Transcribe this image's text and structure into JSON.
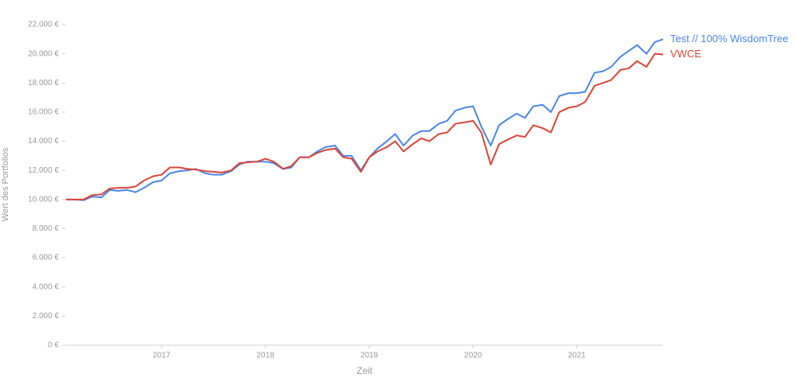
{
  "chart_data": {
    "type": "line",
    "x_label": "Zeit",
    "y_label": "Wert des Portfolios",
    "x": [
      2016.08,
      2016.17,
      2016.25,
      2016.33,
      2016.42,
      2016.5,
      2016.58,
      2016.67,
      2016.75,
      2016.83,
      2016.92,
      2017.0,
      2017.08,
      2017.17,
      2017.25,
      2017.33,
      2017.42,
      2017.5,
      2017.58,
      2017.67,
      2017.75,
      2017.83,
      2017.92,
      2018.0,
      2018.08,
      2018.17,
      2018.25,
      2018.33,
      2018.42,
      2018.5,
      2018.58,
      2018.67,
      2018.75,
      2018.83,
      2018.92,
      2019.0,
      2019.08,
      2019.17,
      2019.25,
      2019.33,
      2019.42,
      2019.5,
      2019.58,
      2019.67,
      2019.75,
      2019.83,
      2019.92,
      2020.0,
      2020.08,
      2020.17,
      2020.25,
      2020.33,
      2020.42,
      2020.5,
      2020.58,
      2020.67,
      2020.75,
      2020.83,
      2020.92,
      2021.0,
      2021.08,
      2021.17,
      2021.25,
      2021.33,
      2021.42,
      2021.5,
      2021.58,
      2021.67,
      2021.75,
      2021.83
    ],
    "series": [
      {
        "name": "Test // 100% WisdomTree",
        "color": "#4a86e8",
        "values": [
          10000,
          10000,
          9950,
          10200,
          10150,
          10650,
          10600,
          10650,
          10500,
          10800,
          11200,
          11300,
          11800,
          11950,
          12000,
          12100,
          11800,
          11700,
          11700,
          11950,
          12400,
          12600,
          12600,
          12600,
          12500,
          12100,
          12200,
          12900,
          12900,
          13300,
          13600,
          13700,
          13000,
          13000,
          12000,
          12900,
          13500,
          14000,
          14500,
          13700,
          14400,
          14700,
          14700,
          15200,
          15400,
          16100,
          16300,
          16400,
          15000,
          13700,
          15100,
          15500,
          15900,
          15600,
          16400,
          16500,
          16000,
          17100,
          17300,
          17300,
          17400,
          18700,
          18800,
          19100,
          19800,
          20200,
          20600,
          20000,
          20800,
          21000
        ]
      },
      {
        "name": "VWCE",
        "color": "#db4437",
        "values": [
          10000,
          10000,
          10000,
          10300,
          10350,
          10750,
          10800,
          10800,
          10900,
          11300,
          11600,
          11700,
          12200,
          12200,
          12100,
          12050,
          11950,
          11900,
          11850,
          12000,
          12500,
          12550,
          12600,
          12800,
          12600,
          12100,
          12300,
          12900,
          12900,
          13200,
          13400,
          13500,
          12900,
          12800,
          11900,
          12900,
          13300,
          13600,
          14000,
          13300,
          13800,
          14200,
          14000,
          14500,
          14600,
          15200,
          15300,
          15400,
          14600,
          12400,
          13800,
          14100,
          14400,
          14300,
          15100,
          14900,
          14600,
          16000,
          16300,
          16400,
          16700,
          17800,
          18000,
          18200,
          18900,
          19000,
          19500,
          19100,
          20000,
          19950
        ]
      }
    ],
    "xlim": [
      2016.08,
      2021.83
    ],
    "xticks": [
      2017,
      2018,
      2019,
      2020,
      2021
    ],
    "ylim": [
      0,
      22000
    ],
    "yticks": [
      {
        "value": 0,
        "label": "0 €"
      },
      {
        "value": 2000,
        "label": "2.000 €"
      },
      {
        "value": 4000,
        "label": "4.000 €"
      },
      {
        "value": 6000,
        "label": "6.000 €"
      },
      {
        "value": 8000,
        "label": "8.000 €"
      },
      {
        "value": 10000,
        "label": "10.000 €"
      },
      {
        "value": 12000,
        "label": "12.000 €"
      },
      {
        "value": 14000,
        "label": "14.000 €"
      },
      {
        "value": 16000,
        "label": "16.000 €"
      },
      {
        "value": 18000,
        "label": "18.000 €"
      },
      {
        "value": 20000,
        "label": "20.000 €"
      },
      {
        "value": 22000,
        "label": "22.000 €"
      }
    ]
  }
}
